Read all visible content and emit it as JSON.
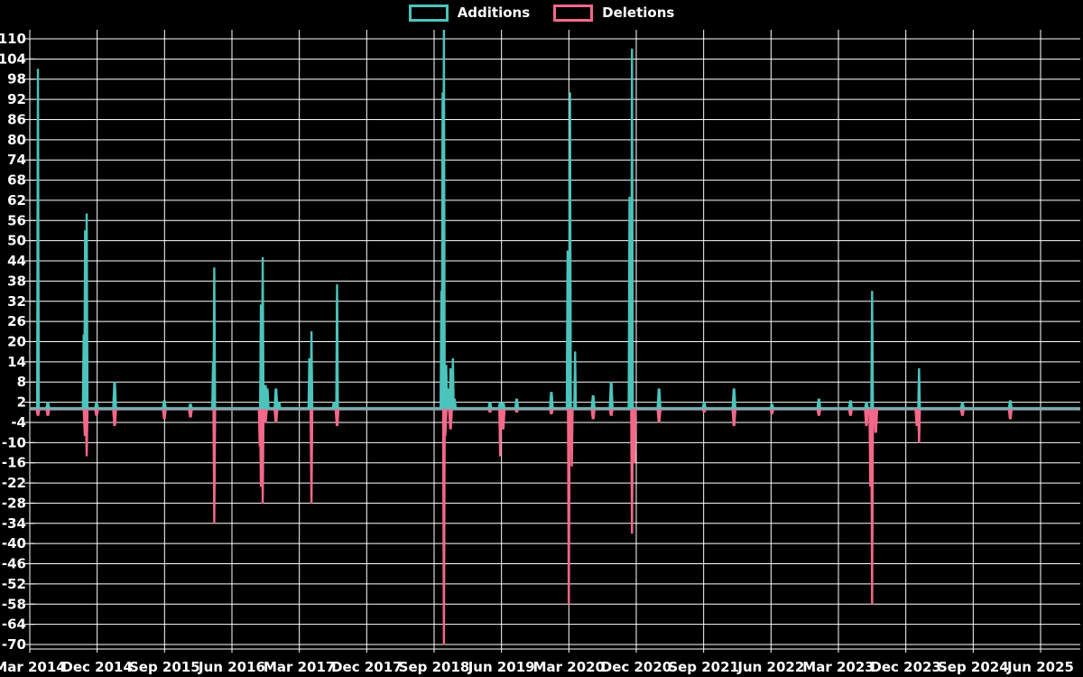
{
  "legend": {
    "additions_label": "Additions",
    "deletions_label": "Deletions"
  },
  "colors": {
    "background": "#000000",
    "grid": "#ffffff",
    "text": "#ffffff",
    "additions": "#4CC4BC",
    "deletions": "#F4688A",
    "baseline": "#8FA3B0"
  },
  "chart_data": {
    "type": "line",
    "title": "",
    "legend_position": "top-center",
    "grid": true,
    "baseline_value": 0,
    "y_axis": {
      "min": -70,
      "max": 110,
      "tick_step": 6,
      "tick_labels": [
        "110",
        "104",
        "98",
        "92",
        "86",
        "80",
        "74",
        "68",
        "62",
        "56",
        "50",
        "44",
        "38",
        "32",
        "26",
        "20",
        "14",
        "8",
        "2",
        "-4",
        "-10",
        "-16",
        "-22",
        "-28",
        "-34",
        "-40",
        "-46",
        "-52",
        "-58",
        "-64",
        "-70"
      ]
    },
    "x_axis": {
      "tick_labels": [
        "Mar 2014",
        "Dec 2014",
        "Sep 2015",
        "Jun 2016",
        "Mar 2017",
        "Dec 2017",
        "Sep 2018",
        "Jun 2019",
        "Mar 2020",
        "Dec 2020",
        "Sep 2021",
        "Jun 2022",
        "Mar 2023",
        "Dec 2023",
        "Sep 2024",
        "Jun 2025"
      ],
      "months_per_tick": 9
    },
    "series_names": [
      "Additions",
      "Deletions"
    ],
    "note": "t = months after first x tick (Mar 2014); additions/deletions are 0 everywhere except these spikes; values beyond y range are clipped",
    "spikes": [
      {
        "t": 1.09,
        "additions": 101,
        "deletions": -2
      },
      {
        "t": 2.41,
        "additions": 2,
        "deletions": -2
      },
      {
        "t": 7.2,
        "additions": 22,
        "deletions": 0
      },
      {
        "t": 7.39,
        "additions": 53,
        "deletions": -8
      },
      {
        "t": 7.6,
        "additions": 58,
        "deletions": -14
      },
      {
        "t": 8.92,
        "additions": 2,
        "deletions": -2
      },
      {
        "t": 11.33,
        "additions": 8,
        "deletions": -5
      },
      {
        "t": 17.97,
        "additions": 2.5,
        "deletions": -3
      },
      {
        "t": 21.46,
        "additions": 1.5,
        "deletions": -2.5
      },
      {
        "t": 24.48,
        "additions": 14,
        "deletions": 0
      },
      {
        "t": 24.64,
        "additions": 42,
        "deletions": -34
      },
      {
        "t": 30.71,
        "additions": 0,
        "deletions": -11
      },
      {
        "t": 30.87,
        "additions": 31,
        "deletions": -23
      },
      {
        "t": 31.11,
        "additions": 45,
        "deletions": -28
      },
      {
        "t": 31.47,
        "additions": 7,
        "deletions": -4
      },
      {
        "t": 31.71,
        "additions": 6,
        "deletions": 0
      },
      {
        "t": 32.88,
        "additions": 6,
        "deletions": -4
      },
      {
        "t": 33.28,
        "additions": 2,
        "deletions": 0
      },
      {
        "t": 37.34,
        "additions": 15,
        "deletions": 0
      },
      {
        "t": 37.62,
        "additions": 23,
        "deletions": -28
      },
      {
        "t": 40.64,
        "additions": 2,
        "deletions": 0
      },
      {
        "t": 41.04,
        "additions": 37,
        "deletions": -5
      },
      {
        "t": 54.98,
        "additions": 35,
        "deletions": 0
      },
      {
        "t": 55.14,
        "additions": 94,
        "deletions": 0
      },
      {
        "t": 55.31,
        "additions": 113,
        "deletions": -70
      },
      {
        "t": 55.46,
        "additions": 0,
        "deletions": -8
      },
      {
        "t": 55.62,
        "additions": 13,
        "deletions": 0
      },
      {
        "t": 55.91,
        "additions": 6,
        "deletions": 0
      },
      {
        "t": 56.19,
        "additions": 12,
        "deletions": -6
      },
      {
        "t": 56.51,
        "additions": 15,
        "deletions": 0
      },
      {
        "t": 56.71,
        "additions": 3,
        "deletions": 0
      },
      {
        "t": 61.46,
        "additions": 2,
        "deletions": -1
      },
      {
        "t": 62.82,
        "additions": 2,
        "deletions": -14
      },
      {
        "t": 63.22,
        "additions": 2,
        "deletions": -6
      },
      {
        "t": 65.03,
        "additions": 3,
        "deletions": -1
      },
      {
        "t": 69.66,
        "additions": 5,
        "deletions": -1.5
      },
      {
        "t": 71.83,
        "additions": 47,
        "deletions": 0
      },
      {
        "t": 71.99,
        "additions": 0,
        "deletions": -58
      },
      {
        "t": 72.15,
        "additions": 94,
        "deletions": 0
      },
      {
        "t": 72.39,
        "additions": 0,
        "deletions": -17
      },
      {
        "t": 72.83,
        "additions": 17,
        "deletions": 0
      },
      {
        "t": 75.24,
        "additions": 4,
        "deletions": -3
      },
      {
        "t": 77.65,
        "additions": 8,
        "deletions": -2
      },
      {
        "t": 80.1,
        "additions": 63,
        "deletions": 0
      },
      {
        "t": 80.43,
        "additions": 107,
        "deletions": -37
      },
      {
        "t": 80.79,
        "additions": 0,
        "deletions": -16
      },
      {
        "t": 84.04,
        "additions": 6,
        "deletions": -4
      },
      {
        "t": 90.07,
        "additions": 2,
        "deletions": -1
      },
      {
        "t": 94.05,
        "additions": 6,
        "deletions": -5
      },
      {
        "t": 99.12,
        "additions": 1.5,
        "deletions": -1.5
      },
      {
        "t": 105.39,
        "additions": 3,
        "deletions": -2
      },
      {
        "t": 109.61,
        "additions": 2.5,
        "deletions": -2
      },
      {
        "t": 111.74,
        "additions": 2,
        "deletions": -5
      },
      {
        "t": 112.26,
        "additions": 0,
        "deletions": -23
      },
      {
        "t": 112.5,
        "additions": 35,
        "deletions": -58
      },
      {
        "t": 112.98,
        "additions": 0,
        "deletions": -7
      },
      {
        "t": 118.49,
        "additions": 0,
        "deletions": -5
      },
      {
        "t": 118.77,
        "additions": 12,
        "deletions": -10
      },
      {
        "t": 124.56,
        "additions": 2,
        "deletions": -2
      },
      {
        "t": 130.95,
        "additions": 2.5,
        "deletions": -3
      }
    ]
  }
}
